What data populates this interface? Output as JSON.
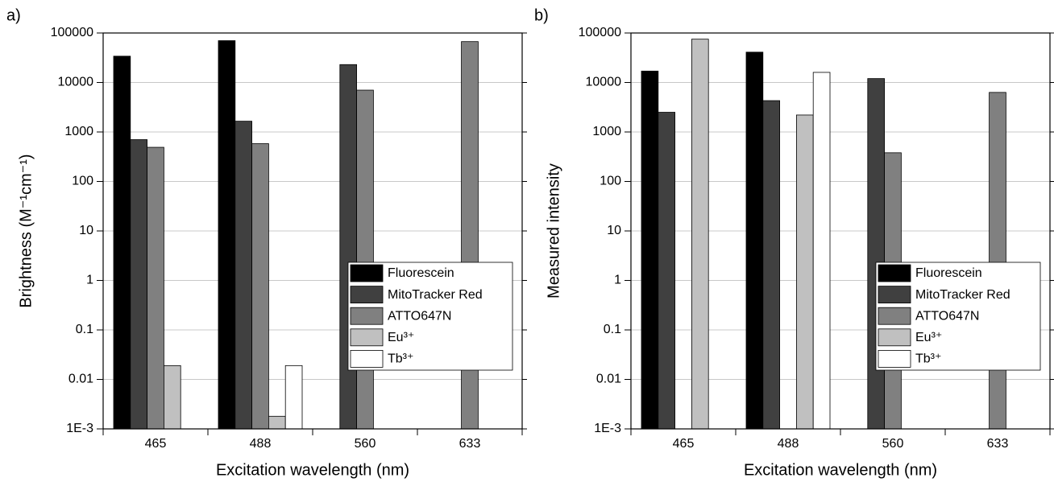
{
  "chart_data": [
    {
      "type": "bar",
      "panel": "a)",
      "ylabel": "Brightness (M⁻¹cm⁻¹)",
      "xlabel": "Excitation wavelength (nm)",
      "categories": [
        "465",
        "488",
        "560",
        "633"
      ],
      "log_y": true,
      "grid": true,
      "legend": "right",
      "ylim": [
        0.001,
        100000
      ],
      "yticks": [
        {
          "value": 0.001,
          "label": "1E-3"
        },
        0.01,
        0.1,
        1,
        10,
        100,
        1000,
        10000,
        100000
      ],
      "series": [
        {
          "name": "Fluorescein",
          "color": "#000000",
          "values": [
            34000,
            70000,
            null,
            null
          ]
        },
        {
          "name": "MitoTracker Red",
          "color": "#404040",
          "values": [
            700,
            1650,
            23000,
            null
          ]
        },
        {
          "name": "ATTO647N",
          "color": "#808080",
          "values": [
            490,
            580,
            7000,
            67000
          ]
        },
        {
          "name": "Eu³⁺",
          "color": "#c0c0c0",
          "values": [
            0.019,
            0.0018,
            null,
            null
          ]
        },
        {
          "name": "Tb³⁺",
          "color": "#ffffff",
          "values": [
            null,
            0.019,
            null,
            null
          ]
        }
      ]
    },
    {
      "type": "bar",
      "panel": "b)",
      "ylabel": "Measured intensity",
      "xlabel": "Excitation wavelength (nm)",
      "categories": [
        "465",
        "488",
        "560",
        "633"
      ],
      "log_y": true,
      "grid": true,
      "legend": "right",
      "ylim": [
        0.001,
        100000
      ],
      "yticks": [
        {
          "value": 0.001,
          "label": "1E-3"
        },
        0.01,
        0.1,
        1,
        10,
        100,
        1000,
        10000,
        100000
      ],
      "series": [
        {
          "name": "Fluorescein",
          "color": "#000000",
          "values": [
            17000,
            41000,
            null,
            null
          ]
        },
        {
          "name": "MitoTracker Red",
          "color": "#404040",
          "values": [
            2500,
            4300,
            12000,
            null
          ]
        },
        {
          "name": "ATTO647N",
          "color": "#808080",
          "values": [
            null,
            null,
            380,
            6300
          ]
        },
        {
          "name": "Eu³⁺",
          "color": "#c0c0c0",
          "values": [
            75000,
            2200,
            null,
            null
          ]
        },
        {
          "name": "Tb³⁺",
          "color": "#ffffff",
          "values": [
            null,
            16000,
            null,
            null
          ]
        }
      ]
    }
  ]
}
